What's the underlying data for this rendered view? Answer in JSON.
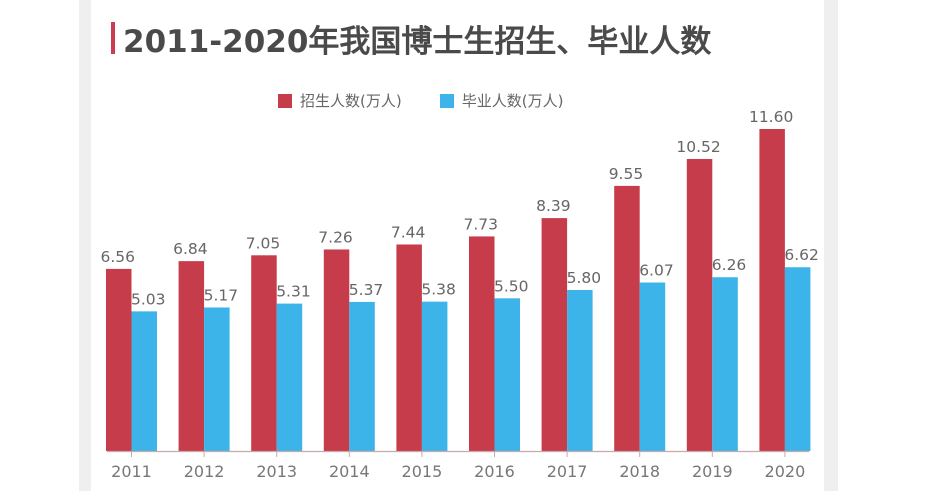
{
  "chart_data": {
    "type": "bar",
    "title": "2011-2020年我国博士生招生、毕业人数",
    "xlabel": "",
    "ylabel": "",
    "categories": [
      "2011",
      "2012",
      "2013",
      "2014",
      "2015",
      "2016",
      "2017",
      "2018",
      "2019",
      "2020"
    ],
    "series": [
      {
        "name": "招生人数(万人)",
        "color": "#c63c4a",
        "values": [
          6.56,
          6.84,
          7.05,
          7.26,
          7.44,
          7.73,
          8.39,
          9.55,
          10.52,
          11.6
        ],
        "labels": [
          "6.56",
          "6.84",
          "7.05",
          "7.26",
          "7.44",
          "7.73",
          "8.39",
          "9.55",
          "10.52",
          "11.60"
        ]
      },
      {
        "name": "毕业人数(万人)",
        "color": "#3cb4ea",
        "values": [
          5.03,
          5.17,
          5.31,
          5.37,
          5.38,
          5.5,
          5.8,
          6.07,
          6.26,
          6.62
        ],
        "labels": [
          "5.03",
          "5.17",
          "5.31",
          "5.37",
          "5.38",
          "5.50",
          "5.80",
          "6.07",
          "6.26",
          "6.62"
        ]
      }
    ],
    "ylim": [
      0,
      11.6
    ],
    "grid": false,
    "legend_position": "top-center",
    "accent_color": "#c8404f",
    "axis_color": "#c9a9a9"
  }
}
